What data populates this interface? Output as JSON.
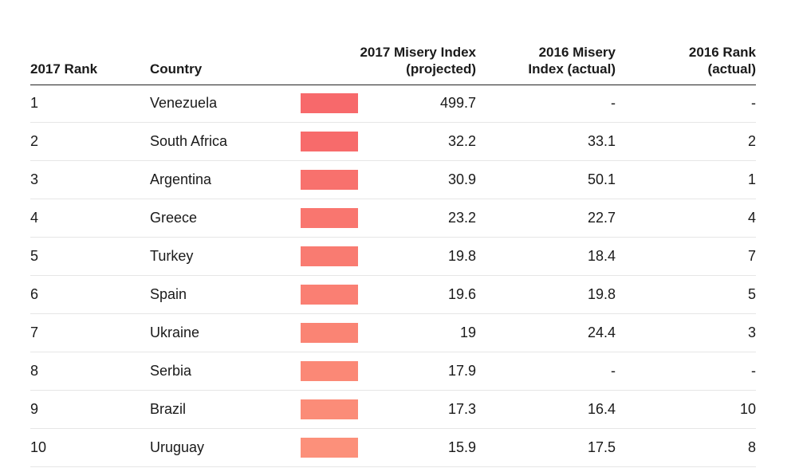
{
  "chart_data": {
    "type": "table",
    "columns": [
      "2017 Rank",
      "Country",
      "2017 Misery Index (projected)",
      "2016 Misery Index (actual)",
      "2016 Rank (actual)"
    ],
    "header_lines": {
      "rank_2017": [
        "2017 Rank"
      ],
      "country": [
        "Country"
      ],
      "index_2017": [
        "2017 Misery Index",
        "(projected)"
      ],
      "index_2016": [
        "2016 Misery",
        "Index (actual)"
      ],
      "rank_2016": [
        "2016 Rank",
        "(actual)"
      ]
    },
    "rows": [
      {
        "rank_2017": "1",
        "country": "Venezuela",
        "index_2017": "499.7",
        "index_2016": "-",
        "rank_2016": "-",
        "bar_color": "#f7696b"
      },
      {
        "rank_2017": "2",
        "country": "South Africa",
        "index_2017": "32.2",
        "index_2016": "33.1",
        "rank_2016": "2",
        "bar_color": "#f76b6b"
      },
      {
        "rank_2017": "3",
        "country": "Argentina",
        "index_2017": "30.9",
        "index_2016": "50.1",
        "rank_2016": "1",
        "bar_color": "#f8716d"
      },
      {
        "rank_2017": "4",
        "country": "Greece",
        "index_2017": "23.2",
        "index_2016": "22.7",
        "rank_2016": "4",
        "bar_color": "#f9766f"
      },
      {
        "rank_2017": "5",
        "country": "Turkey",
        "index_2017": "19.8",
        "index_2016": "18.4",
        "rank_2016": "7",
        "bar_color": "#f97b71"
      },
      {
        "rank_2017": "6",
        "country": "Spain",
        "index_2017": "19.6",
        "index_2016": "19.8",
        "rank_2016": "5",
        "bar_color": "#fa7f73"
      },
      {
        "rank_2017": "7",
        "country": "Ukraine",
        "index_2017": "19",
        "index_2016": "24.4",
        "rank_2016": "3",
        "bar_color": "#fa8474"
      },
      {
        "rank_2017": "8",
        "country": "Serbia",
        "index_2017": "17.9",
        "index_2016": "-",
        "rank_2016": "-",
        "bar_color": "#fb8876"
      },
      {
        "rank_2017": "9",
        "country": "Brazil",
        "index_2017": "17.3",
        "index_2016": "16.4",
        "rank_2016": "10",
        "bar_color": "#fb8c78"
      },
      {
        "rank_2017": "10",
        "country": "Uruguay",
        "index_2017": "15.9",
        "index_2016": "17.5",
        "rank_2016": "8",
        "bar_color": "#fc907a"
      }
    ]
  }
}
